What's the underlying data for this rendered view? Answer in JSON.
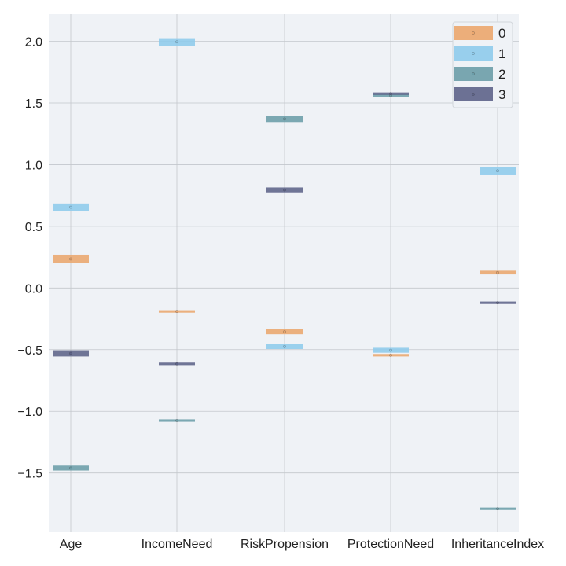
{
  "chart_data": {
    "type": "scatter",
    "title": "",
    "xlabel": "",
    "ylabel": "",
    "categories": [
      "Age",
      "IncomeNeed",
      "RiskPropension",
      "ProtectionNeed",
      "InheritanceIndex"
    ],
    "ylim": [
      -1.98,
      2.22
    ],
    "y_ticks": [
      2.0,
      1.5,
      1.0,
      0.5,
      0.0,
      -0.5,
      -1.0,
      -1.5
    ],
    "y_tick_labels": [
      "2.0",
      "1.5",
      "1.0",
      "0.5",
      "0.0",
      "−0.5",
      "−1.0",
      "−1.5"
    ],
    "grid": true,
    "legend_position": "top-right",
    "series": [
      {
        "name": "0",
        "color": "#eba66d",
        "values": [
          0.235,
          -0.19,
          -0.355,
          -0.545,
          0.125
        ],
        "band": [
          0.035,
          0.01,
          0.02,
          0.01,
          0.015
        ]
      },
      {
        "name": "1",
        "color": "#8ecbec",
        "values": [
          0.655,
          1.995,
          -0.475,
          -0.505,
          0.95
        ],
        "band": [
          0.03,
          0.03,
          0.02,
          0.02,
          0.03
        ]
      },
      {
        "name": "2",
        "color": "#6b9da8",
        "values": [
          -1.46,
          -1.075,
          1.37,
          1.56,
          -1.79
        ],
        "band": [
          0.02,
          0.01,
          0.025,
          0.01,
          0.01
        ]
      },
      {
        "name": "3",
        "color": "#5d6389",
        "values": [
          -0.53,
          -0.615,
          0.795,
          1.575,
          -0.12
        ],
        "band": [
          0.025,
          0.01,
          0.02,
          0.01,
          0.01
        ]
      }
    ]
  }
}
